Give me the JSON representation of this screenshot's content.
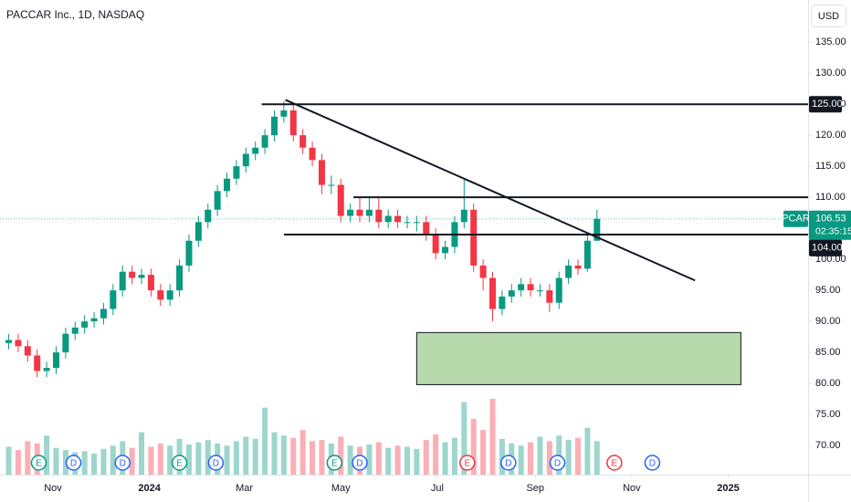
{
  "chart_data": {
    "type": "candlestick",
    "title": "PACCAR Inc., 1D, NASDAQ",
    "currency": "USD",
    "series": [
      {
        "name": "PCAR",
        "up_color": "#089981",
        "down_color": "#f23645",
        "x": [
          -28,
          -22,
          -16,
          -10,
          -4,
          2,
          8,
          14,
          20,
          26,
          32,
          38,
          44,
          50,
          56,
          62,
          68,
          74,
          80,
          86,
          92,
          98,
          104,
          110,
          116,
          122,
          128,
          134,
          140,
          146,
          152,
          158,
          164,
          170,
          176,
          182,
          188,
          194,
          200,
          206,
          212,
          218,
          224,
          230,
          236,
          242,
          248,
          254,
          260,
          266,
          272,
          278,
          284,
          290,
          296,
          302,
          308,
          314,
          320,
          326,
          332,
          338,
          344
        ],
        "open": [
          86.5,
          87,
          86,
          84.5,
          82,
          82.5,
          85,
          88,
          89,
          90,
          90.5,
          92,
          95,
          98,
          97,
          97.5,
          95,
          93.5,
          95,
          99,
          103,
          106,
          108,
          111,
          113,
          115,
          117,
          118,
          120,
          123,
          124,
          120,
          118,
          116,
          112,
          112,
          107,
          108,
          107,
          108,
          106,
          107,
          106,
          106,
          106,
          104,
          101,
          102,
          106,
          108,
          99,
          97,
          92,
          94,
          95,
          96,
          95,
          95,
          93,
          97,
          99,
          98.5,
          103
        ],
        "high": [
          88,
          88,
          87,
          85.5,
          83.5,
          86,
          89,
          90,
          91,
          91.5,
          93,
          96,
          99,
          99,
          98.5,
          98.5,
          96,
          96,
          100,
          104,
          107,
          109,
          112,
          114,
          116,
          118,
          119,
          121,
          124,
          125.5,
          125,
          121,
          119,
          117,
          113.5,
          113,
          109,
          110,
          110,
          110,
          108,
          108,
          107,
          107,
          107,
          105,
          103,
          107,
          113,
          109,
          100,
          98,
          95,
          96,
          97,
          97,
          96,
          96,
          98,
          100,
          100,
          104,
          108
        ],
        "low": [
          85.5,
          85,
          83.5,
          81,
          81,
          81.5,
          84,
          87,
          88,
          89,
          89.5,
          91,
          94,
          96,
          96,
          94,
          92.5,
          92.5,
          94,
          98,
          102,
          105,
          107,
          110,
          112,
          114,
          116,
          117,
          119,
          122,
          119,
          117,
          115,
          110.5,
          110.5,
          106,
          106,
          106,
          106,
          105,
          105,
          105,
          105,
          104.5,
          103,
          100,
          100,
          101,
          105,
          98,
          95,
          90,
          91,
          93,
          94,
          94,
          94,
          91.5,
          92,
          96,
          97.5,
          98,
          103
        ],
        "close": [
          87,
          86,
          84.5,
          82,
          82.5,
          85,
          88,
          89,
          90,
          90.5,
          92,
          95,
          98,
          97,
          97.5,
          95,
          93.5,
          95,
          99,
          103,
          106,
          108,
          111,
          113,
          115,
          117,
          118,
          120,
          123,
          124,
          120,
          118,
          116,
          112,
          112,
          107,
          108,
          107,
          108,
          106,
          107,
          106,
          106,
          106,
          104,
          101,
          102,
          106,
          108,
          99,
          97,
          92,
          94,
          95,
          96,
          95,
          95,
          93,
          97,
          99,
          98.5,
          103,
          106.53
        ],
        "volume": [
          2.5,
          2.2,
          3,
          2.8,
          3.5,
          2.4,
          2.2,
          2,
          2.1,
          1.9,
          2.3,
          2.6,
          3,
          2.4,
          3.8,
          2.5,
          2.8,
          2.6,
          3.2,
          2.7,
          2.9,
          3.1,
          2.8,
          2.6,
          3,
          3.4,
          3.2,
          6,
          3.8,
          3.5,
          3.3,
          4,
          3,
          3.1,
          2.8,
          3.4,
          2.6,
          2.5,
          2.7,
          2.9,
          2.4,
          2.6,
          2.5,
          2.3,
          3.1,
          3.6,
          2.9,
          3.3,
          6.5,
          5,
          4,
          6.8,
          3.2,
          2.8,
          2.6,
          2.9,
          3.4,
          3,
          3.5,
          3.1,
          3.3,
          4.2,
          3
        ]
      }
    ],
    "volume_ylim": [
      0,
      9
    ],
    "xlim": [
      -33.5,
      477.5
    ],
    "xticks": [
      {
        "value": 0,
        "label": "Nov"
      },
      {
        "value": 61,
        "label": "2024"
      },
      {
        "value": 121,
        "label": "Mar"
      },
      {
        "value": 182,
        "label": "May"
      },
      {
        "value": 243,
        "label": "Jul"
      },
      {
        "value": 305,
        "label": "Sep"
      },
      {
        "value": 366,
        "label": "Nov"
      },
      {
        "value": 427,
        "label": "2025"
      }
    ],
    "ylim": [
      65.3,
      141.8
    ],
    "yticks": [
      {
        "value": 70,
        "label": "70.00"
      },
      {
        "value": 75,
        "label": "75.00"
      },
      {
        "value": 80,
        "label": "80.00"
      },
      {
        "value": 85,
        "label": "85.00"
      },
      {
        "value": 90,
        "label": "90.00"
      },
      {
        "value": 95,
        "label": "95.00"
      },
      {
        "value": 100,
        "label": "100.00"
      },
      {
        "value": 105,
        "label": "105.00"
      },
      {
        "value": 110,
        "label": "110.00"
      },
      {
        "value": 115,
        "label": "115.00"
      },
      {
        "value": 120,
        "label": "120.00"
      },
      {
        "value": 125,
        "label": "125.00"
      },
      {
        "value": 130,
        "label": "130.00"
      },
      {
        "value": 135,
        "label": "135.00"
      }
    ],
    "grid": false,
    "last_price": {
      "value": 106.53,
      "countdown": "02:35:15",
      "color": "#089981"
    },
    "horizontal_lines": [
      {
        "value": 125,
        "label": "125.00",
        "start": 132
      },
      {
        "value": 110,
        "label": "110.00",
        "start": 190
      },
      {
        "value": 104,
        "label": "104.00",
        "start": 146
      }
    ],
    "trendline": {
      "x": [
        147,
        406
      ],
      "y": [
        125.7,
        96.6
      ]
    },
    "zone": {
      "x": [
        230,
        435
      ],
      "y": [
        79.8,
        88.2
      ],
      "color": "#a5cf96"
    },
    "events": [
      {
        "x": -9,
        "label": "E",
        "color": "#089981"
      },
      {
        "x": 13,
        "label": "D",
        "color": "#2962ff"
      },
      {
        "x": 44,
        "label": "D",
        "color": "#2962ff"
      },
      {
        "x": 80,
        "label": "E",
        "color": "#089981"
      },
      {
        "x": 103,
        "label": "D",
        "color": "#2962ff"
      },
      {
        "x": 178,
        "label": "E",
        "color": "#089981"
      },
      {
        "x": 194,
        "label": "D",
        "color": "#2962ff"
      },
      {
        "x": 262,
        "label": "E",
        "color": "#f23645"
      },
      {
        "x": 288,
        "label": "D",
        "color": "#2962ff"
      },
      {
        "x": 319,
        "label": "D",
        "color": "#2962ff"
      },
      {
        "x": 355,
        "label": "E",
        "color": "#f23645"
      },
      {
        "x": 379,
        "label": "D",
        "color": "#2962ff"
      }
    ]
  }
}
